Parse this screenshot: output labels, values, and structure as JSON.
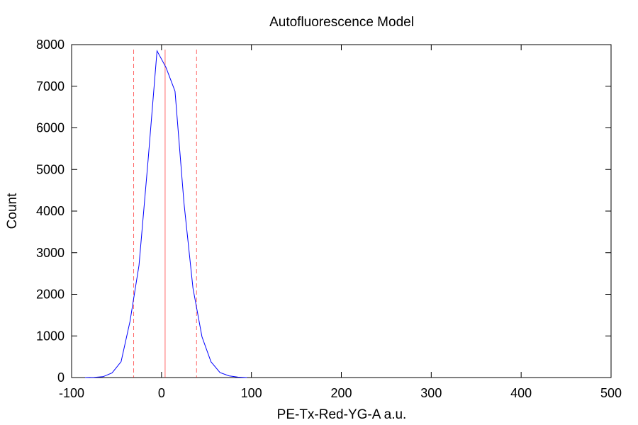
{
  "chart_data": {
    "type": "line",
    "title": "Autofluorescence Model",
    "xlabel": "PE-Tx-Red-YG-A a.u.",
    "ylabel": "Count",
    "xlim": [
      -100,
      500
    ],
    "ylim": [
      0,
      8000
    ],
    "xticks": [
      -100,
      0,
      100,
      200,
      300,
      400,
      500
    ],
    "yticks": [
      0,
      1000,
      2000,
      3000,
      4000,
      5000,
      6000,
      7000,
      8000
    ],
    "grid": false,
    "series": [
      {
        "color": "#0000ff",
        "x": [
          -85,
          -75,
          -65,
          -55,
          -45,
          -35,
          -25,
          -15,
          -5,
          5,
          15,
          25,
          35,
          45,
          55,
          65,
          75,
          85,
          95
        ],
        "y": [
          0,
          5,
          20,
          110,
          380,
          1350,
          2700,
          5200,
          7850,
          7450,
          6880,
          4200,
          2150,
          980,
          380,
          120,
          40,
          10,
          0
        ]
      }
    ],
    "reference_lines": [
      {
        "x": 4,
        "style": "solid",
        "color": "#ff0000"
      },
      {
        "x": -31,
        "style": "dashed",
        "color": "#ff0000"
      },
      {
        "x": 39,
        "style": "dashed",
        "color": "#ff0000"
      }
    ]
  }
}
